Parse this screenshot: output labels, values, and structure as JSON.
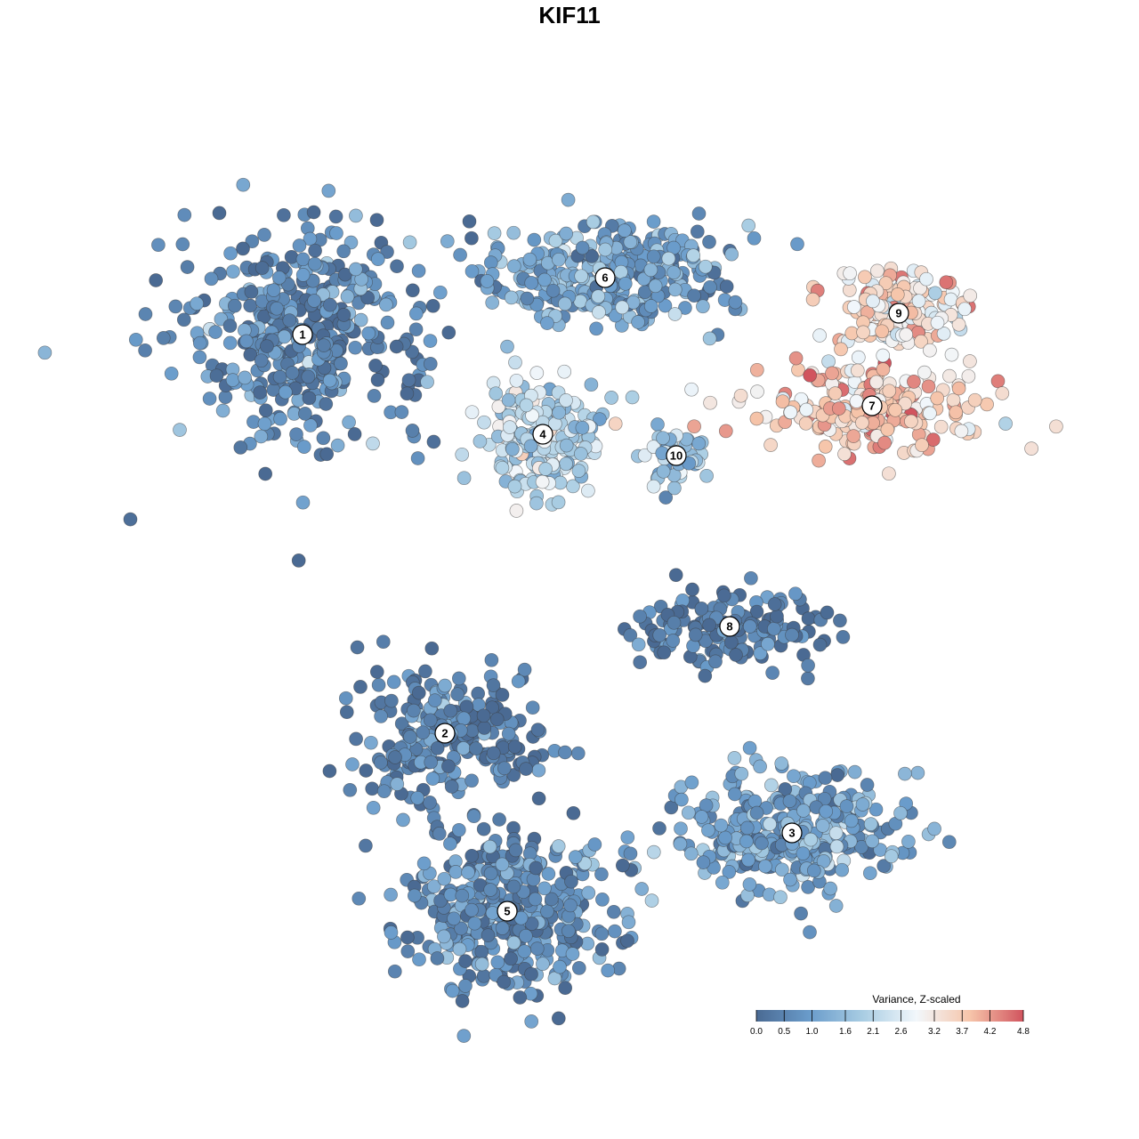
{
  "chart_data": {
    "type": "scatter",
    "title": "KIF11",
    "xlabel": "",
    "ylabel": "",
    "grid": false,
    "legend": {
      "title": "Variance, Z-scaled",
      "placement": "bottom-right",
      "range": [
        0.0,
        4.8
      ],
      "ticks": [
        "0.0",
        "0.5",
        "1.0",
        "1.6",
        "2.1",
        "2.6",
        "3.2",
        "3.7",
        "4.2",
        "4.8"
      ],
      "tick_values": [
        0.0,
        0.5,
        1.0,
        1.6,
        2.1,
        2.6,
        3.2,
        3.7,
        4.2,
        4.8
      ],
      "colors": [
        "#4a6a93",
        "#6a9ccb",
        "#a9cde3",
        "#f2f7fb",
        "#f6c5aa",
        "#d1545e"
      ]
    },
    "clusters": [
      {
        "label": "1",
        "x": -3.0,
        "y": 3.3,
        "mean_value": 0.6
      },
      {
        "label": "2",
        "x": -1.4,
        "y": -2.3,
        "mean_value": 0.4
      },
      {
        "label": "3",
        "x": 2.5,
        "y": -3.7,
        "mean_value": 1.1
      },
      {
        "label": "4",
        "x": -0.3,
        "y": 1.9,
        "mean_value": 2.2
      },
      {
        "label": "5",
        "x": -0.7,
        "y": -4.8,
        "mean_value": 0.6
      },
      {
        "label": "6",
        "x": 0.4,
        "y": 4.1,
        "mean_value": 1.0
      },
      {
        "label": "7",
        "x": 3.4,
        "y": 2.3,
        "mean_value": 3.6
      },
      {
        "label": "8",
        "x": 1.8,
        "y": -0.8,
        "mean_value": 0.3
      },
      {
        "label": "9",
        "x": 3.7,
        "y": 3.6,
        "mean_value": 3.3
      },
      {
        "label": "10",
        "x": 1.2,
        "y": 1.6,
        "mean_value": 1.8
      }
    ]
  }
}
